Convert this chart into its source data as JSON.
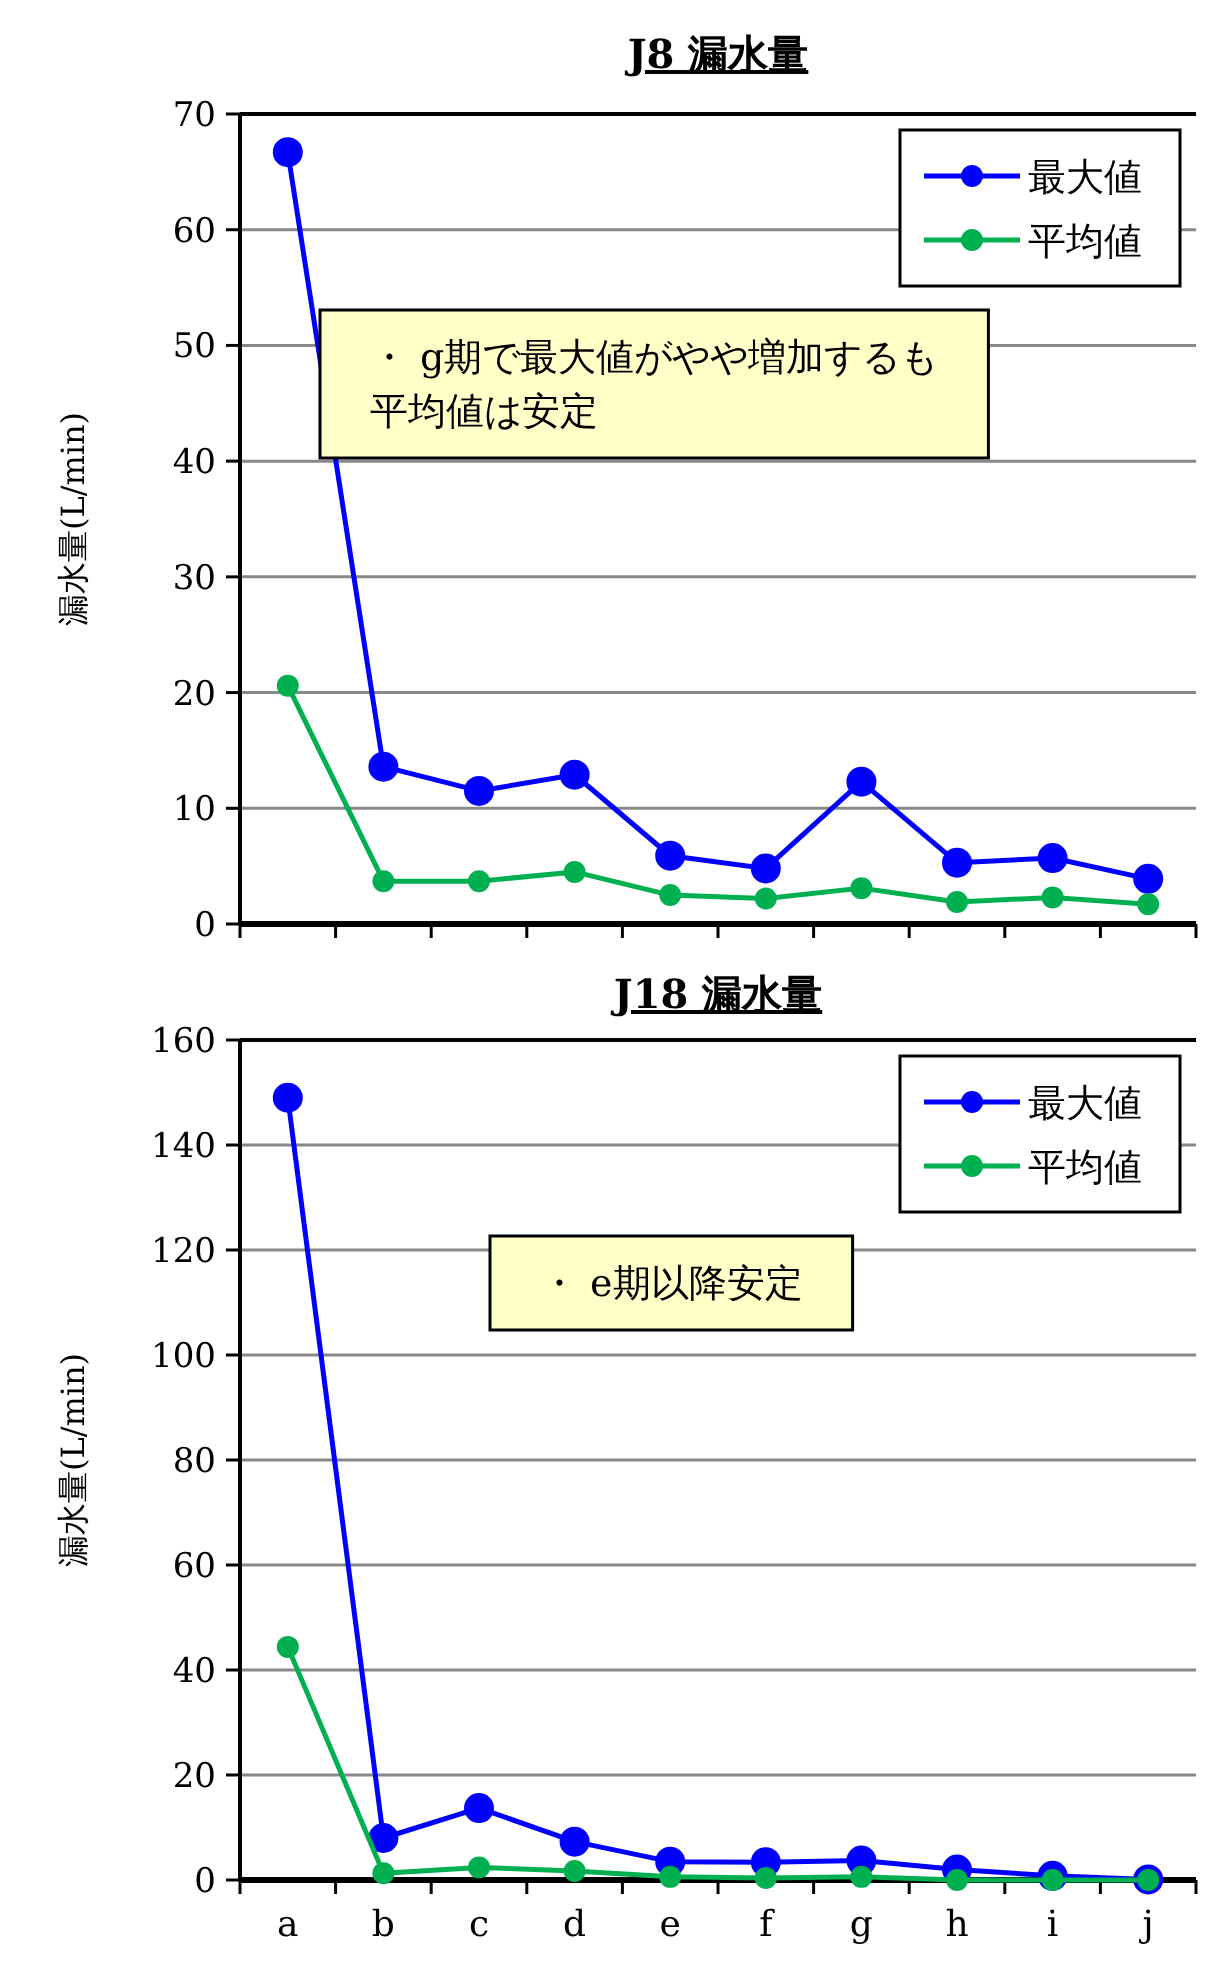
{
  "chart_data": [
    {
      "type": "line",
      "title": "J8  漏水量",
      "ylabel": "漏水量(L/min)",
      "categories": [
        null,
        null,
        null,
        null,
        null,
        null,
        null,
        null,
        null,
        null
      ],
      "series": [
        {
          "name": "最大値",
          "color": "#0000ff",
          "values": [
            66.7,
            13.6,
            11.5,
            12.9,
            5.9,
            4.8,
            12.3,
            5.3,
            5.7,
            3.9
          ]
        },
        {
          "name": "平均値",
          "color": "#00b050",
          "values": [
            20.6,
            3.7,
            3.7,
            4.5,
            2.5,
            2.2,
            3.1,
            1.9,
            2.3,
            1.7
          ]
        }
      ],
      "ylim": [
        0,
        70
      ],
      "yticks": [
        0,
        10,
        20,
        30,
        40,
        50,
        60,
        70
      ],
      "grid": "y",
      "legend": "top right",
      "marker": "circle",
      "annotations": [
        "・ g期で最大値がやや増加するも平均値は安定"
      ]
    },
    {
      "type": "line",
      "title": "J18  漏水量",
      "ylabel": "漏水量(L/min)",
      "categories": [
        "a",
        "b",
        "c",
        "d",
        "e",
        "f",
        "g",
        "h",
        "i",
        "j"
      ],
      "series": [
        {
          "name": "最大値",
          "color": "#0000ff",
          "values": [
            149,
            8.0,
            13.7,
            7.3,
            3.5,
            3.4,
            3.7,
            2.0,
            0.8,
            0.1
          ]
        },
        {
          "name": "平均値",
          "color": "#00b050",
          "values": [
            44.4,
            1.3,
            2.4,
            1.7,
            0.6,
            0.4,
            0.6,
            0,
            0,
            0
          ]
        }
      ],
      "ylim": [
        0,
        160
      ],
      "yticks": [
        0,
        20,
        40,
        60,
        80,
        100,
        120,
        140,
        160
      ],
      "grid": "y",
      "legend": "top right",
      "marker": "circle",
      "annotations": [
        "・ e期以降安定"
      ]
    }
  ]
}
